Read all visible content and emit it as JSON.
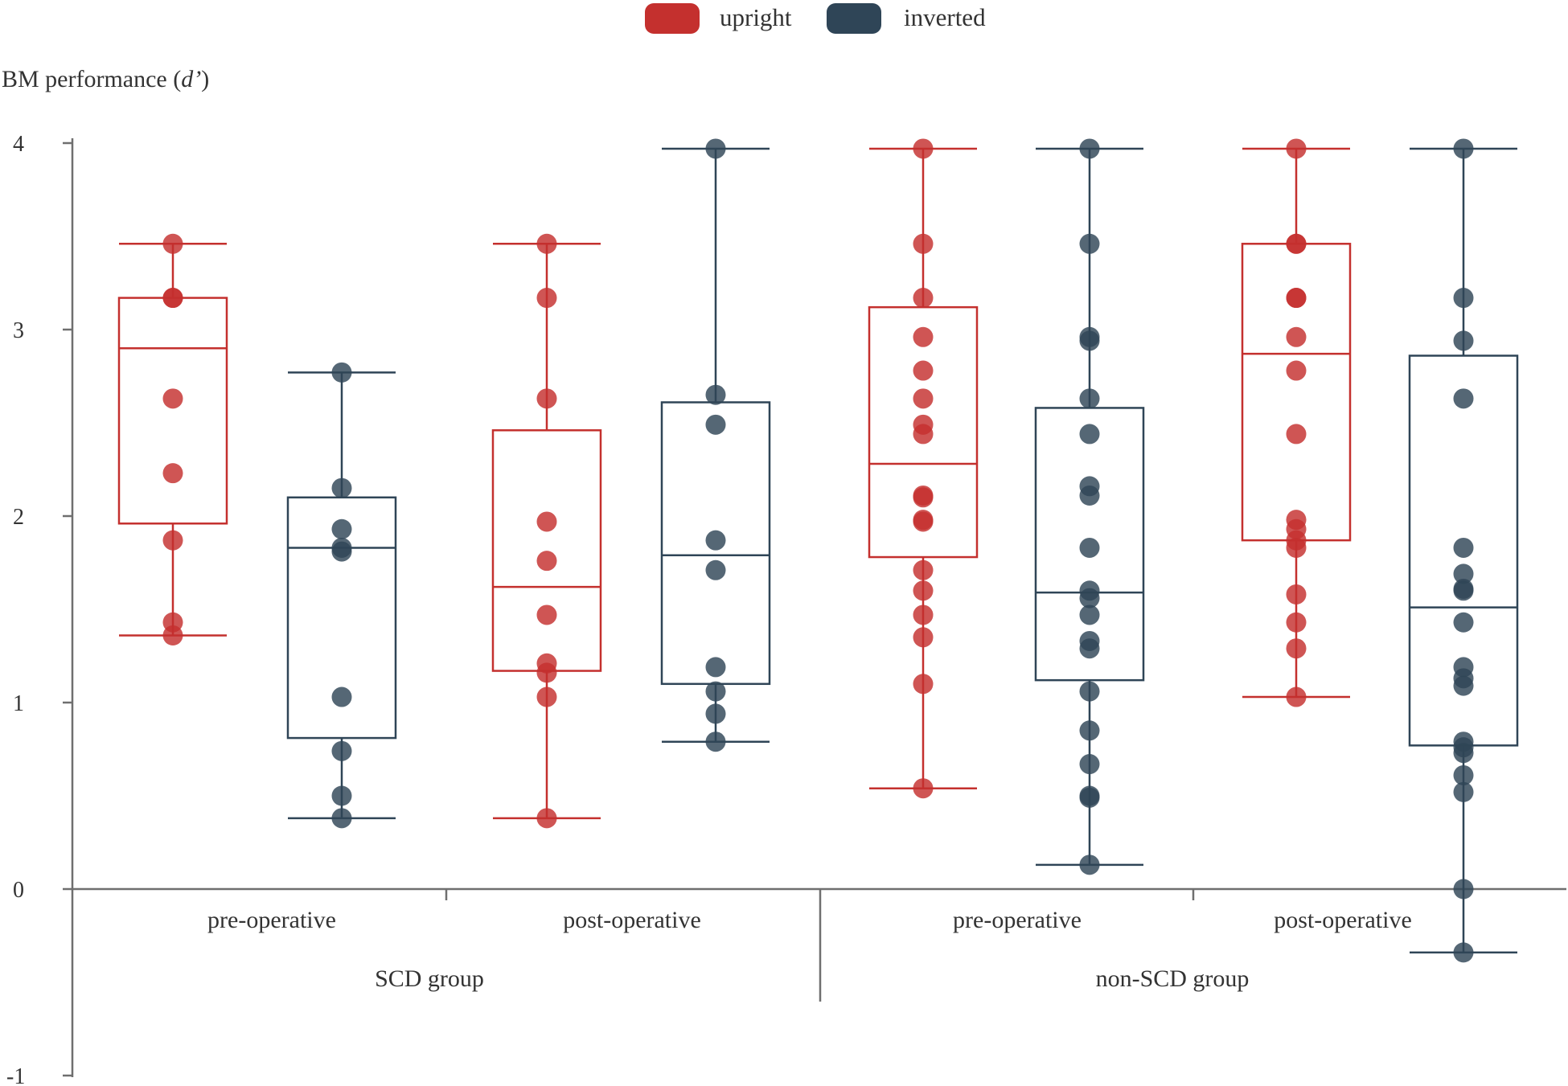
{
  "chart_data": {
    "type": "box",
    "title": "",
    "ylabel_prefix": "BM performance (",
    "ylabel_italic": "d’",
    "ylabel_suffix": ")",
    "ylim": [
      -1,
      4
    ],
    "yticks": [
      4,
      3,
      2,
      1,
      0,
      -1
    ],
    "ytick_labels": [
      "4",
      "3",
      "2",
      "1",
      "0",
      "-1"
    ],
    "legend": {
      "position": "top-center",
      "entries": [
        {
          "label": "upright",
          "color": "#C4302E"
        },
        {
          "label": "inverted",
          "color": "#2F4557"
        }
      ]
    },
    "groups": [
      {
        "label": "SCD group",
        "conditions": [
          "pre-operative",
          "post-operative"
        ]
      },
      {
        "label": "non-SCD group",
        "conditions": [
          "pre-operative",
          "post-operative"
        ]
      }
    ],
    "series": [
      {
        "group": "SCD group",
        "condition": "pre-operative",
        "orientation": "upright",
        "whisker_low": 1.36,
        "q1": 1.96,
        "median": 2.9,
        "q3": 3.17,
        "whisker_high": 3.46,
        "points": [
          3.46,
          3.17,
          3.17,
          2.63,
          2.23,
          1.87,
          1.43,
          1.36
        ]
      },
      {
        "group": "SCD group",
        "condition": "pre-operative",
        "orientation": "inverted",
        "whisker_low": 0.38,
        "q1": 0.81,
        "median": 1.83,
        "q3": 2.1,
        "whisker_high": 2.77,
        "points": [
          2.77,
          2.15,
          1.93,
          1.83,
          1.81,
          1.03,
          0.74,
          0.5,
          0.38
        ]
      },
      {
        "group": "SCD group",
        "condition": "post-operative",
        "orientation": "upright",
        "whisker_low": 0.38,
        "q1": 1.17,
        "median": 1.62,
        "q3": 2.46,
        "whisker_high": 3.46,
        "points": [
          3.46,
          3.17,
          2.63,
          1.97,
          1.76,
          1.47,
          1.21,
          1.16,
          1.03,
          0.38
        ]
      },
      {
        "group": "SCD group",
        "condition": "post-operative",
        "orientation": "inverted",
        "whisker_low": 0.79,
        "q1": 1.1,
        "median": 1.79,
        "q3": 2.61,
        "whisker_high": 3.97,
        "points": [
          3.97,
          2.65,
          2.49,
          1.87,
          1.71,
          1.19,
          1.06,
          0.94,
          0.79
        ]
      },
      {
        "group": "non-SCD group",
        "condition": "pre-operative",
        "orientation": "upright",
        "whisker_low": 0.54,
        "q1": 1.78,
        "median": 2.28,
        "q3": 3.12,
        "whisker_high": 3.97,
        "points": [
          3.97,
          3.46,
          3.17,
          2.96,
          2.78,
          2.63,
          2.49,
          2.44,
          2.11,
          2.1,
          1.98,
          1.97,
          1.71,
          1.6,
          1.47,
          1.35,
          1.1,
          0.54
        ]
      },
      {
        "group": "non-SCD group",
        "condition": "pre-operative",
        "orientation": "inverted",
        "whisker_low": 0.13,
        "q1": 1.12,
        "median": 1.59,
        "q3": 2.58,
        "whisker_high": 3.97,
        "points": [
          3.97,
          3.46,
          2.96,
          2.94,
          2.63,
          2.44,
          2.16,
          2.11,
          1.83,
          1.6,
          1.56,
          1.47,
          1.33,
          1.29,
          1.06,
          0.85,
          0.67,
          0.5,
          0.49,
          0.13
        ]
      },
      {
        "group": "non-SCD group",
        "condition": "post-operative",
        "orientation": "upright",
        "whisker_low": 1.03,
        "q1": 1.87,
        "median": 2.87,
        "q3": 3.46,
        "whisker_high": 3.97,
        "points": [
          3.97,
          3.46,
          3.46,
          3.17,
          3.17,
          2.96,
          2.78,
          2.44,
          1.98,
          1.93,
          1.87,
          1.83,
          1.58,
          1.43,
          1.29,
          1.03
        ]
      },
      {
        "group": "non-SCD group",
        "condition": "post-operative",
        "orientation": "inverted",
        "whisker_low": -0.34,
        "q1": 0.77,
        "median": 1.51,
        "q3": 2.86,
        "whisker_high": 3.97,
        "points": [
          3.97,
          3.17,
          2.94,
          2.63,
          1.83,
          1.69,
          1.61,
          1.6,
          1.43,
          1.19,
          1.13,
          1.09,
          0.79,
          0.76,
          0.73,
          0.61,
          0.52,
          0.0,
          -0.34
        ]
      }
    ]
  }
}
